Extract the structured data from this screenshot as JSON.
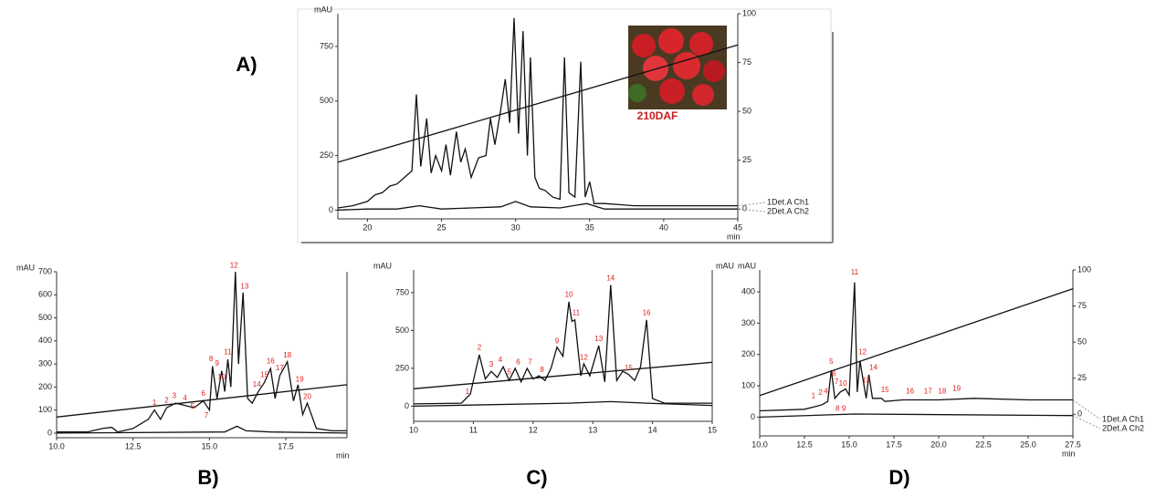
{
  "chart_data": [
    {
      "type": "line",
      "panel": "A)",
      "y_label": "mAU",
      "x_label": "min",
      "image_caption": "210DAF",
      "xlim": [
        18,
        45
      ],
      "ylim": [
        -40,
        900
      ],
      "y2lim": [
        -5,
        100
      ],
      "xticks": [
        20,
        25,
        30,
        35,
        40,
        45
      ],
      "yticks": [
        0,
        250,
        500,
        750
      ],
      "y2ticks": [
        0,
        25,
        50,
        75,
        100
      ],
      "series": [
        {
          "name": "1Det.A Ch1",
          "color": "#111111",
          "x": [
            18,
            19,
            20,
            20.5,
            21,
            21.5,
            22,
            22.5,
            23,
            23.3,
            23.6,
            24,
            24.3,
            24.6,
            25,
            25.3,
            25.6,
            26,
            26.3,
            26.6,
            27,
            27.5,
            28,
            28.3,
            28.6,
            29,
            29.3,
            29.6,
            29.9,
            30.2,
            30.5,
            30.8,
            31,
            31.3,
            31.6,
            32,
            32.5,
            33,
            33.3,
            33.6,
            34,
            34.4,
            34.7,
            35,
            35.3,
            36,
            37,
            38,
            39,
            40,
            42,
            45
          ],
          "values": [
            10,
            20,
            40,
            70,
            80,
            110,
            120,
            150,
            180,
            530,
            200,
            420,
            170,
            250,
            180,
            300,
            160,
            360,
            220,
            280,
            150,
            240,
            250,
            420,
            300,
            460,
            600,
            400,
            880,
            350,
            820,
            250,
            700,
            150,
            100,
            90,
            60,
            50,
            700,
            80,
            60,
            680,
            60,
            130,
            30,
            30,
            25,
            20,
            20,
            20,
            20,
            20
          ]
        },
        {
          "name": "2Det.A Ch2",
          "color": "#111111",
          "x": [
            18,
            20,
            22,
            23.5,
            25,
            27,
            29,
            30,
            31,
            33,
            34.8,
            36,
            40,
            45
          ],
          "values": [
            0,
            5,
            5,
            20,
            5,
            10,
            15,
            40,
            15,
            10,
            30,
            5,
            5,
            5
          ]
        },
        {
          "color": "#111111",
          "axis": "y2",
          "x": [
            18,
            45
          ],
          "values": [
            24,
            84
          ]
        }
      ]
    },
    {
      "type": "line",
      "panel": "B)",
      "y_label": "mAU",
      "x_label": "min",
      "xlim": [
        10,
        19.5
      ],
      "ylim": [
        -20,
        700
      ],
      "xticks": [
        {
          "value": 10,
          "label": "10.0"
        },
        12.5,
        {
          "value": 15,
          "label": "15.0"
        },
        17.5
      ],
      "yticks": [
        0,
        100,
        200,
        300,
        400,
        500,
        600,
        700
      ],
      "series": [
        {
          "color": "#111111",
          "x": [
            10,
            11,
            11.5,
            11.8,
            12,
            12.5,
            13,
            13.2,
            13.4,
            13.6,
            13.9,
            14.2,
            14.5,
            14.8,
            15.0,
            15.1,
            15.25,
            15.4,
            15.5,
            15.6,
            15.7,
            15.85,
            15.95,
            16.1,
            16.25,
            16.4,
            16.6,
            16.8,
            17.0,
            17.15,
            17.3,
            17.55,
            17.75,
            17.9,
            18.05,
            18.2,
            18.5,
            19,
            19.5
          ],
          "values": [
            5,
            5,
            20,
            25,
            5,
            20,
            60,
            100,
            60,
            110,
            130,
            120,
            110,
            140,
            100,
            290,
            150,
            270,
            180,
            320,
            200,
            700,
            300,
            610,
            150,
            130,
            180,
            220,
            280,
            150,
            250,
            310,
            140,
            210,
            80,
            130,
            20,
            10,
            10
          ]
        },
        {
          "color": "#111111",
          "x": [
            10,
            15.5,
            15.9,
            16.2,
            17,
            19.5
          ],
          "values": [
            0,
            5,
            30,
            10,
            5,
            0
          ]
        },
        {
          "color": "#111111",
          "x": [
            10,
            19.5
          ],
          "values": [
            70,
            210
          ]
        }
      ],
      "annotations": [
        {
          "text": "1",
          "x": 13.2,
          "y": 115
        },
        {
          "text": "2",
          "x": 13.6,
          "y": 125
        },
        {
          "text": "3",
          "x": 13.85,
          "y": 145
        },
        {
          "text": "4",
          "x": 14.2,
          "y": 135
        },
        {
          "text": "5",
          "x": 14.45,
          "y": 100
        },
        {
          "text": "6",
          "x": 14.8,
          "y": 155
        },
        {
          "text": "7",
          "x": 14.9,
          "y": 60
        },
        {
          "text": "8",
          "x": 15.05,
          "y": 305
        },
        {
          "text": "9",
          "x": 15.25,
          "y": 285
        },
        {
          "text": "10",
          "x": 15.4,
          "y": 225
        },
        {
          "text": "11",
          "x": 15.6,
          "y": 335
        },
        {
          "text": "12",
          "x": 15.8,
          "y": 710
        },
        {
          "text": "13",
          "x": 16.15,
          "y": 620
        },
        {
          "text": "14",
          "x": 16.55,
          "y": 195
        },
        {
          "text": "15",
          "x": 16.8,
          "y": 235
        },
        {
          "text": "16",
          "x": 17.0,
          "y": 295
        },
        {
          "text": "17",
          "x": 17.3,
          "y": 265
        },
        {
          "text": "18",
          "x": 17.55,
          "y": 320
        },
        {
          "text": "19",
          "x": 17.95,
          "y": 215
        },
        {
          "text": "20",
          "x": 18.2,
          "y": 140
        }
      ]
    },
    {
      "type": "line",
      "panel": "C)",
      "y_label": "mAU",
      "y2_label": "mAU",
      "xlim": [
        10,
        15
      ],
      "ylim": [
        -100,
        900
      ],
      "xticks": [
        10,
        11,
        12,
        13,
        14,
        15
      ],
      "yticks": [
        0,
        250,
        500,
        750
      ],
      "series": [
        {
          "color": "#111111",
          "x": [
            10,
            10.8,
            10.95,
            11.1,
            11.2,
            11.3,
            11.4,
            11.5,
            11.6,
            11.7,
            11.8,
            11.9,
            12.0,
            12.1,
            12.2,
            12.3,
            12.4,
            12.5,
            12.6,
            12.65,
            12.7,
            12.8,
            12.85,
            12.95,
            13.1,
            13.2,
            13.3,
            13.4,
            13.5,
            13.6,
            13.7,
            13.8,
            13.9,
            14.0,
            14.2,
            15
          ],
          "values": [
            15,
            20,
            80,
            340,
            180,
            230,
            190,
            260,
            170,
            250,
            160,
            250,
            180,
            200,
            170,
            250,
            390,
            330,
            690,
            560,
            570,
            200,
            280,
            200,
            400,
            160,
            800,
            170,
            230,
            210,
            170,
            260,
            570,
            50,
            20,
            20
          ]
        },
        {
          "color": "#111111",
          "x": [
            10,
            12.6,
            13.3,
            13.9,
            15
          ],
          "values": [
            0,
            20,
            30,
            20,
            5
          ]
        },
        {
          "color": "#111111",
          "x": [
            10,
            15
          ],
          "values": [
            115,
            290
          ]
        }
      ],
      "annotations": [
        {
          "text": "1",
          "x": 10.9,
          "y": 70
        },
        {
          "text": "2",
          "x": 11.1,
          "y": 360
        },
        {
          "text": "3",
          "x": 11.3,
          "y": 250
        },
        {
          "text": "4",
          "x": 11.45,
          "y": 280
        },
        {
          "text": "5",
          "x": 11.6,
          "y": 200
        },
        {
          "text": "6",
          "x": 11.75,
          "y": 265
        },
        {
          "text": "7",
          "x": 11.95,
          "y": 265
        },
        {
          "text": "8",
          "x": 12.15,
          "y": 215
        },
        {
          "text": "9",
          "x": 12.4,
          "y": 405
        },
        {
          "text": "10",
          "x": 12.6,
          "y": 710
        },
        {
          "text": "11",
          "x": 12.72,
          "y": 590
        },
        {
          "text": "12",
          "x": 12.85,
          "y": 295
        },
        {
          "text": "13",
          "x": 13.1,
          "y": 420
        },
        {
          "text": "14",
          "x": 13.3,
          "y": 820
        },
        {
          "text": "15",
          "x": 13.6,
          "y": 225
        },
        {
          "text": "16",
          "x": 13.9,
          "y": 590
        }
      ]
    },
    {
      "type": "line",
      "panel": "D)",
      "y_label": "mAU",
      "x_label": "min",
      "xlim": [
        10,
        27.5
      ],
      "ylim": [
        -60,
        470
      ],
      "y2lim": [
        -15,
        100
      ],
      "xticks": [
        {
          "value": 10,
          "label": "10.0"
        },
        12.5,
        {
          "value": 15,
          "label": "15.0"
        },
        17.5,
        {
          "value": 20,
          "label": "20.0"
        },
        22.5,
        {
          "value": 25,
          "label": "25.0"
        },
        27.5
      ],
      "yticks": [
        0,
        100,
        200,
        300,
        400
      ],
      "y2ticks": [
        0,
        25,
        50,
        75,
        100
      ],
      "series": [
        {
          "name": "1Det.A Ch1",
          "color": "#111111",
          "x": [
            10,
            12.5,
            13.2,
            13.5,
            13.8,
            14.0,
            14.2,
            14.5,
            14.8,
            15.0,
            15.3,
            15.45,
            15.6,
            15.8,
            15.95,
            16.1,
            16.3,
            16.8,
            17,
            18,
            20,
            22,
            25,
            27.5
          ],
          "values": [
            20,
            25,
            35,
            40,
            50,
            150,
            60,
            80,
            90,
            70,
            430,
            80,
            180,
            110,
            60,
            135,
            60,
            60,
            50,
            55,
            55,
            60,
            55,
            55
          ]
        },
        {
          "name": "2Det.A Ch2",
          "color": "#111111",
          "x": [
            10,
            15.3,
            27.5
          ],
          "values": [
            0,
            10,
            5
          ]
        },
        {
          "color": "#111111",
          "axis": "y2",
          "x": [
            10,
            27.5
          ],
          "values": [
            13,
            87
          ]
        }
      ],
      "annotations": [
        {
          "text": "1",
          "x": 13.0,
          "y": 55
        },
        {
          "text": "2",
          "x": 13.4,
          "y": 65
        },
        {
          "text": "4",
          "x": 13.7,
          "y": 70
        },
        {
          "text": "5",
          "x": 14.0,
          "y": 165
        },
        {
          "text": "6",
          "x": 14.15,
          "y": 125
        },
        {
          "text": "7",
          "x": 14.3,
          "y": 100
        },
        {
          "text": "8",
          "x": 14.35,
          "y": 15
        },
        {
          "text": "9",
          "x": 14.7,
          "y": 15
        },
        {
          "text": "10",
          "x": 14.65,
          "y": 95
        },
        {
          "text": "11",
          "x": 15.3,
          "y": 450
        },
        {
          "text": "12",
          "x": 15.75,
          "y": 195
        },
        {
          "text": "13",
          "x": 15.95,
          "y": 105
        },
        {
          "text": "14",
          "x": 16.35,
          "y": 145
        },
        {
          "text": "15",
          "x": 17.0,
          "y": 75
        },
        {
          "text": "16",
          "x": 18.4,
          "y": 70
        },
        {
          "text": "17",
          "x": 19.4,
          "y": 70
        },
        {
          "text": "18",
          "x": 20.2,
          "y": 70
        },
        {
          "text": "19",
          "x": 21.0,
          "y": 78
        }
      ]
    }
  ]
}
